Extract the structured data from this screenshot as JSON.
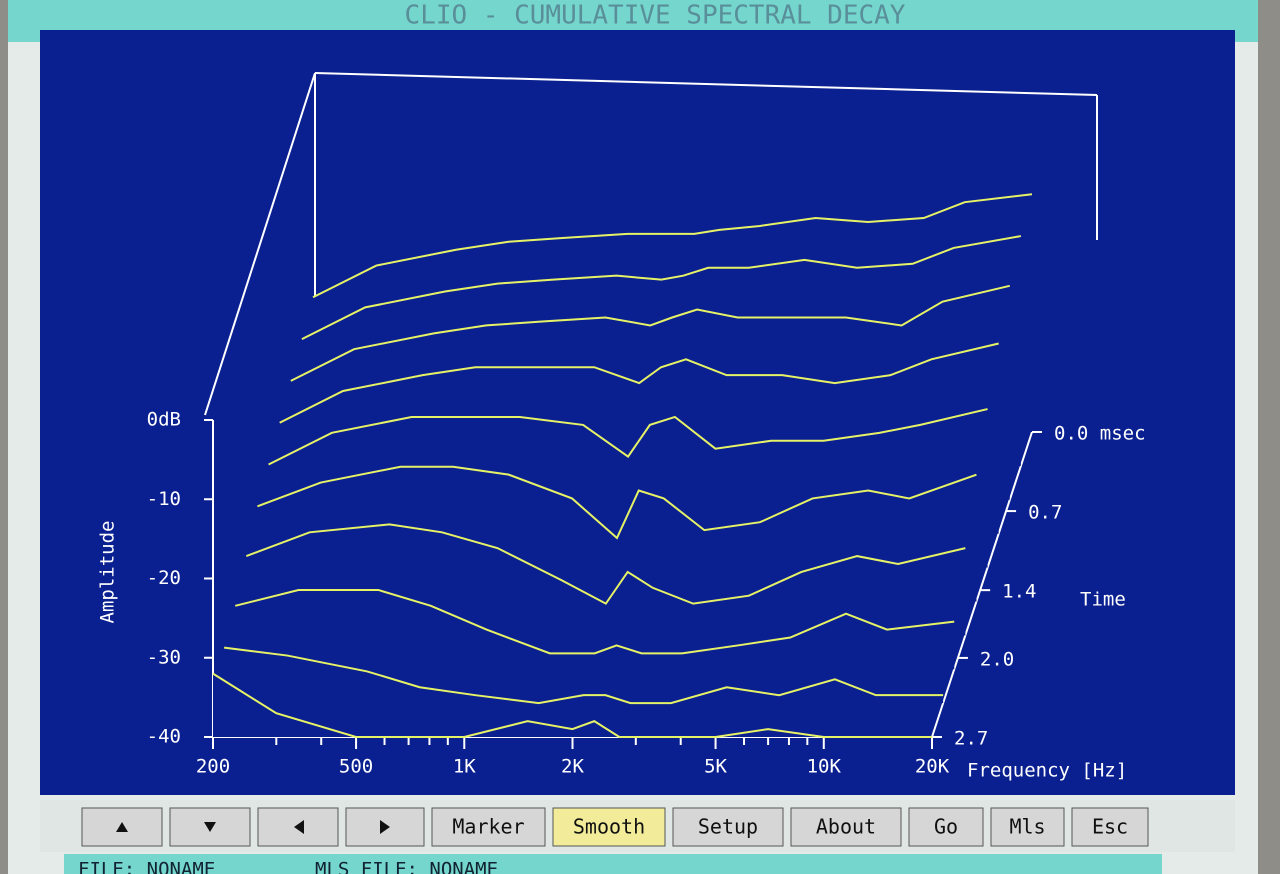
{
  "window": {
    "title": "CLIO - CUMULATIVE SPECTRAL DECAY",
    "buttons": [
      "Marker",
      "Smooth",
      "Setup",
      "About",
      "Go",
      "Mls",
      "Esc"
    ],
    "active_button": 1,
    "status": [
      "FILE: NONAME",
      "MLS FILE: NONAME"
    ]
  },
  "chart_data": {
    "type": "waterfall",
    "color": "#e6f266",
    "y_label": "Amplitude",
    "x_label": "Frequency [Hz]",
    "z_label": "Time",
    "xlog": true,
    "xlim": [
      200,
      20000
    ],
    "xticks": [
      200,
      500,
      {
        "value": 1000,
        "label": "1K"
      },
      {
        "value": 2000,
        "label": "2K"
      },
      {
        "value": 5000,
        "label": "5K"
      },
      {
        "value": 10000,
        "label": "10K"
      },
      {
        "value": 20000,
        "label": "20K"
      }
    ],
    "xminorticks": [
      300,
      400,
      600,
      700,
      800,
      900,
      3000,
      4000,
      6000,
      7000,
      8000,
      9000
    ],
    "ylim": [
      -40,
      0
    ],
    "yticks": [
      {
        "value": 0,
        "label": "0dB"
      },
      -10,
      -20,
      -30,
      -40
    ],
    "zlim": [
      0,
      2.7
    ],
    "zticks": [
      {
        "value": 0,
        "label": "0.0 msec"
      },
      0.7,
      1.4,
      {
        "value": 2,
        "label": "2.0"
      },
      2.7
    ],
    "x": [
      200,
      300,
      500,
      700,
      1000,
      1500,
      2000,
      2300,
      2700,
      3500,
      5000,
      7000,
      10000,
      13000,
      20000
    ],
    "series": [
      {
        "z": 0,
        "values": [
          -23,
          -19,
          -17,
          -16,
          -15.5,
          -15,
          -15,
          -15,
          -14.5,
          -14,
          -13,
          -13.5,
          -13,
          -11,
          -10
        ]
      },
      {
        "z": 0.3,
        "values": [
          -24,
          -20,
          -18,
          -17,
          -16.5,
          -16,
          -16.5,
          -16,
          -15,
          -15,
          -14,
          -15,
          -14.5,
          -12.5,
          -11
        ]
      },
      {
        "z": 0.6,
        "values": [
          -25,
          -21,
          -19,
          -18,
          -17.5,
          -17,
          -18,
          -17,
          -16,
          -17,
          -17,
          -17,
          -18,
          -15,
          -13
        ]
      },
      {
        "z": 0.9,
        "values": [
          -26,
          -22,
          -20,
          -19,
          -19,
          -19,
          -21,
          -19,
          -18,
          -20,
          -20,
          -21,
          -20,
          -18,
          -16
        ]
      },
      {
        "z": 1.2,
        "values": [
          -27,
          -23,
          -21,
          -21,
          -21,
          -22,
          -26,
          -22,
          -21,
          -25,
          -24,
          -24,
          -23,
          -22,
          -20
        ]
      },
      {
        "z": 1.5,
        "values": [
          -28,
          -25,
          -23,
          -23,
          -24,
          -27,
          -32,
          -26,
          -27,
          -31,
          -30,
          -27,
          -26,
          -27,
          -24
        ]
      },
      {
        "z": 1.8,
        "values": [
          -30,
          -27,
          -26,
          -27,
          -29,
          -33,
          -36,
          -32,
          -34,
          -36,
          -35,
          -32,
          -30,
          -31,
          -29
        ]
      },
      {
        "z": 2.1,
        "values": [
          -32,
          -30,
          -30,
          -32,
          -35,
          -38,
          -38,
          -37,
          -38,
          -38,
          -37,
          -36,
          -33,
          -35,
          -34
        ]
      },
      {
        "z": 2.4,
        "values": [
          -33,
          -34,
          -36,
          -38,
          -39,
          -40,
          -39,
          -39,
          -40,
          -40,
          -38,
          -39,
          -37,
          -39,
          -39
        ]
      },
      {
        "z": 2.7,
        "values": [
          -32,
          -37,
          -40,
          -40,
          -40,
          -38,
          -39,
          -38,
          -40,
          -40,
          -40,
          -39,
          -40,
          -40,
          -40
        ]
      }
    ]
  }
}
